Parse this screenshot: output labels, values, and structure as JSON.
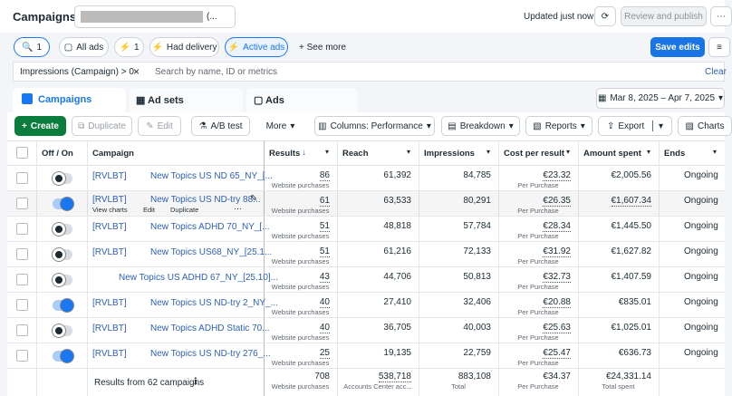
{
  "header": {
    "title": "Campaigns",
    "account_suffix": "(...",
    "updated": "Updated just now",
    "review": "Review and publish",
    "save": "Save edits"
  },
  "filters": {
    "search_count": "1",
    "all_ads": "All ads",
    "count": "1",
    "had_delivery": "Had delivery",
    "active_ads": "Active ads",
    "see_more": "See more",
    "filter_chip": "Impressions (Campaign) > 0",
    "search_placeholder": "Search by name, ID or metrics",
    "clear": "Clear"
  },
  "tabs": [
    "Campaigns",
    "Ad sets",
    "Ads"
  ],
  "date_range": "Mar 8, 2025 – Apr 7, 2025",
  "toolbar": {
    "create": "Create",
    "duplicate": "Duplicate",
    "edit": "Edit",
    "ab_test": "A/B test",
    "more": "More",
    "columns": "Columns: Performance",
    "breakdown": "Breakdown",
    "reports": "Reports",
    "export": "Export",
    "charts": "Charts"
  },
  "table": {
    "columns": [
      "Off / On",
      "Campaign",
      "Results",
      "Reach",
      "Impressions",
      "Cost per result",
      "Amount spent",
      "Ends"
    ],
    "rows": [
      {
        "on": false,
        "tag": "[RVLBT]",
        "name": "New Topics US ND 65_NY_[...",
        "results": "86",
        "results_type": "Website purchases",
        "reach": "61,392",
        "impressions": "84,785",
        "cost": "€23.32",
        "cost_type": "Per Purchase",
        "spent": "€2,005.56",
        "ends": "Ongoing"
      },
      {
        "on": true,
        "tag": "[RVLBT]",
        "name": "New Topics US ND-try 88...",
        "results": "61",
        "results_type": "Website purchases",
        "reach": "63,533",
        "impressions": "80,291",
        "cost": "€26.35",
        "cost_type": "Per Purchase",
        "spent": "€1,607.34",
        "ends": "Ongoing",
        "actions": [
          "View charts",
          "Edit",
          "Duplicate"
        ]
      },
      {
        "on": false,
        "tag": "[RVLBT]",
        "name": "New Topics ADHD 70_NY_[...",
        "results": "51",
        "results_type": "Website purchases",
        "reach": "48,818",
        "impressions": "57,784",
        "cost": "€28.34",
        "cost_type": "Per Purchase",
        "spent": "€1,445.50",
        "ends": "Ongoing"
      },
      {
        "on": false,
        "tag": "[RVLBT]",
        "name": "New Topics US68_NY_[25.1...",
        "results": "51",
        "results_type": "Website purchases",
        "reach": "61,216",
        "impressions": "72,133",
        "cost": "€31.92",
        "cost_type": "Per Purchase",
        "spent": "€1,627.82",
        "ends": "Ongoing"
      },
      {
        "on": false,
        "name": "New Topics US ADHD 67_NY_[25.10]...",
        "results": "43",
        "results_type": "Website purchases",
        "reach": "44,706",
        "impressions": "50,813",
        "cost": "€32.73",
        "cost_type": "Per Purchase",
        "spent": "€1,407.59",
        "ends": "Ongoing"
      },
      {
        "on": true,
        "tag": "[RVLBT]",
        "name": "New Topics US ND-try 2_NY_...",
        "results": "40",
        "results_type": "Website purchases",
        "reach": "27,410",
        "impressions": "32,406",
        "cost": "€20.88",
        "cost_type": "Per Purchase",
        "spent": "€835.01",
        "ends": "Ongoing"
      },
      {
        "on": false,
        "tag": "[RVLBT]",
        "name": "New Topics ADHD Static 70...",
        "results": "40",
        "results_type": "Website purchases",
        "reach": "36,705",
        "impressions": "40,003",
        "cost": "€25.63",
        "cost_type": "Per Purchase",
        "spent": "€1,025.01",
        "ends": "Ongoing"
      },
      {
        "on": true,
        "tag": "[RVLBT]",
        "name": "New Topics US ND-try 276_...",
        "results": "25",
        "results_type": "Website purchases",
        "reach": "19,135",
        "impressions": "22,759",
        "cost": "€25.47",
        "cost_type": "Per Purchase",
        "spent": "€636.73",
        "ends": "Ongoing"
      }
    ],
    "footer": {
      "label": "Results from 62 campaigns",
      "results": "708",
      "results_type": "Website purchases",
      "reach": "538,718",
      "reach_type": "Accounts Center acc...",
      "impressions": "883,108",
      "impressions_type": "Total",
      "cost": "€34.37",
      "cost_type": "Per Purchase",
      "spent": "€24,331.14",
      "spent_type": "Total spent"
    }
  }
}
